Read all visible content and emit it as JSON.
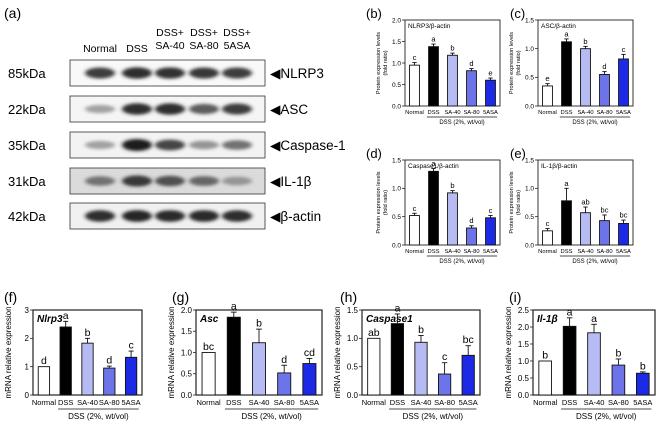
{
  "panel_a": {
    "letter": "(a)",
    "lanes": [
      "Normal",
      "DSS",
      "DSS+\nSA-40",
      "DSS+\nSA-80",
      "DSS+\n5ASA"
    ],
    "blots": [
      {
        "mw": "85kDa",
        "protein": "◀NLRP3",
        "intensity": [
          0.78,
          0.85,
          0.82,
          0.8,
          0.78
        ],
        "bg": 0.05
      },
      {
        "mw": "22kDa",
        "protein": "◀ASC",
        "intensity": [
          0.35,
          0.85,
          0.85,
          0.65,
          0.78
        ],
        "bg": 0.08
      },
      {
        "mw": "35kDa",
        "protein": "◀Caspase-1",
        "intensity": [
          0.35,
          0.92,
          0.75,
          0.4,
          0.55
        ],
        "bg": 0.1
      },
      {
        "mw": "31kDa",
        "protein": "◀IL-1β",
        "intensity": [
          0.55,
          0.8,
          0.7,
          0.6,
          0.4
        ],
        "bg": 0.3
      },
      {
        "mw": "42kDa",
        "protein": "◀β-actin",
        "intensity": [
          0.85,
          0.88,
          0.86,
          0.86,
          0.85
        ],
        "bg": 0.12
      }
    ]
  },
  "chart_data": [
    {
      "id": "b",
      "letter": "(b)",
      "type": "bar",
      "title": "NLRP3/β-actin",
      "ylabel": "Protein expression levels\n(fold ratio)",
      "xlabel": "DSS (2%, wt/vol)",
      "categories": [
        "Normal",
        "DSS",
        "SA-40",
        "SA-80",
        "5ASA"
      ],
      "values": [
        0.95,
        1.38,
        1.18,
        0.82,
        0.6
      ],
      "errors": [
        0.06,
        0.06,
        0.05,
        0.05,
        0.05
      ],
      "letters": [
        "c",
        "a",
        "b",
        "d",
        "e"
      ],
      "ylim": [
        0,
        2.0
      ],
      "yticks": [
        "0.0",
        "0.5",
        "1.0",
        "1.5",
        "2.0"
      ]
    },
    {
      "id": "c",
      "letter": "(c)",
      "type": "bar",
      "title": "ASC/β-actin",
      "ylabel": "Protein expression levels\n(fold ratio)",
      "xlabel": "DSS (2%, wt/vol)",
      "categories": [
        "Normal",
        "DSS",
        "SA-40",
        "SA-80",
        "5ASA"
      ],
      "values": [
        0.35,
        1.12,
        1.0,
        0.55,
        0.82
      ],
      "errors": [
        0.04,
        0.05,
        0.04,
        0.05,
        0.08
      ],
      "letters": [
        "e",
        "a",
        "b",
        "d",
        "c"
      ],
      "ylim": [
        0,
        1.5
      ],
      "yticks": [
        "0.0",
        "0.5",
        "1.0",
        "1.5"
      ]
    },
    {
      "id": "d",
      "letter": "(d)",
      "type": "bar",
      "title": "Caspase1/β-actin",
      "ylabel": "Protein expression levels\n(fold ratio)",
      "xlabel": "DSS (2%, wt/vol)",
      "categories": [
        "Normal",
        "DSS",
        "SA-40",
        "SA-80",
        "5ASA"
      ],
      "values": [
        0.52,
        1.3,
        0.92,
        0.3,
        0.48
      ],
      "errors": [
        0.04,
        0.05,
        0.04,
        0.04,
        0.04
      ],
      "letters": [
        "c",
        "a",
        "b",
        "d",
        "c"
      ],
      "ylim": [
        0,
        1.5
      ],
      "yticks": [
        "0.0",
        "0.5",
        "1.0",
        "1.5"
      ]
    },
    {
      "id": "e",
      "letter": "(e)",
      "type": "bar",
      "title": "IL-1β/β-actin",
      "ylabel": "Protein expression levels\n(fold ratio)",
      "xlabel": "DSS (2%, wt/vol)",
      "categories": [
        "Normal",
        "DSS",
        "SA-40",
        "SA-80",
        "5ASA"
      ],
      "values": [
        0.25,
        0.78,
        0.57,
        0.43,
        0.38
      ],
      "errors": [
        0.04,
        0.22,
        0.1,
        0.1,
        0.06
      ],
      "letters": [
        "c",
        "a",
        "ab",
        "bc",
        "bc"
      ],
      "ylim": [
        0,
        1.5
      ],
      "yticks": [
        "0.0",
        "0.5",
        "1.0",
        "1.5"
      ]
    },
    {
      "id": "f",
      "letter": "(f)",
      "type": "bar",
      "title": "Nlrp3",
      "ylabel": "mRNA relative expression",
      "xlabel": "DSS (2%, wt/vol)",
      "categories": [
        "Normal",
        "DSS",
        "SA-40",
        "SA-80",
        "5ASA"
      ],
      "values": [
        1.0,
        2.4,
        1.83,
        0.95,
        1.33
      ],
      "errors": [
        0.0,
        0.2,
        0.17,
        0.07,
        0.22
      ],
      "letters": [
        "d",
        "a",
        "b",
        "d",
        "c"
      ],
      "ylim": [
        0,
        3
      ],
      "yticks": [
        "0",
        "1",
        "2",
        "3"
      ]
    },
    {
      "id": "g",
      "letter": "(g)",
      "type": "bar",
      "title": "Asc",
      "ylabel": "mRNA relative expression",
      "xlabel": "DSS (2%, wt/vol)",
      "categories": [
        "Normal",
        "DSS",
        "SA-40",
        "SA-80",
        "5ASA"
      ],
      "values": [
        1.0,
        1.83,
        1.23,
        0.52,
        0.74
      ],
      "errors": [
        0.0,
        0.12,
        0.32,
        0.18,
        0.12
      ],
      "letters": [
        "bc",
        "a",
        "b",
        "d",
        "cd"
      ],
      "ylim": [
        0,
        2.0
      ],
      "yticks": [
        "0.0",
        "0.5",
        "1.0",
        "1.5",
        "2.0"
      ]
    },
    {
      "id": "h",
      "letter": "(h)",
      "type": "bar",
      "title": "Caspase1",
      "ylabel": "mRNA relative expression",
      "xlabel": "DSS (2%, wt/vol)",
      "categories": [
        "Normal",
        "DSS",
        "SA-40",
        "SA-80",
        "5ASA"
      ],
      "values": [
        1.0,
        1.26,
        0.93,
        0.37,
        0.7
      ],
      "errors": [
        0.0,
        0.17,
        0.12,
        0.2,
        0.17
      ],
      "letters": [
        "ab",
        "a",
        "b",
        "c",
        "bc"
      ],
      "ylim": [
        0,
        1.5
      ],
      "yticks": [
        "0.0",
        "0.5",
        "1.0",
        "1.5"
      ]
    },
    {
      "id": "i",
      "letter": "(i)",
      "type": "bar",
      "title": "Il-1β",
      "ylabel": "mRNA relative expression",
      "xlabel": "DSS (2%, wt/vol)",
      "categories": [
        "Normal",
        "DSS",
        "SA-40",
        "SA-80",
        "5ASA"
      ],
      "values": [
        1.0,
        2.02,
        1.83,
        0.88,
        0.64
      ],
      "errors": [
        0.0,
        0.25,
        0.25,
        0.18,
        0.04
      ],
      "letters": [
        "b",
        "a",
        "a",
        "b",
        "b"
      ],
      "ylim": [
        0,
        2.5
      ],
      "yticks": [
        "0.0",
        "0.5",
        "1.0",
        "1.5",
        "2.0",
        "2.5"
      ]
    }
  ],
  "colors": {
    "bars": [
      "#ffffff",
      "#000000",
      "#b6bbf3",
      "#6d74ea",
      "#1c2ae6"
    ],
    "axis": "#222222"
  }
}
